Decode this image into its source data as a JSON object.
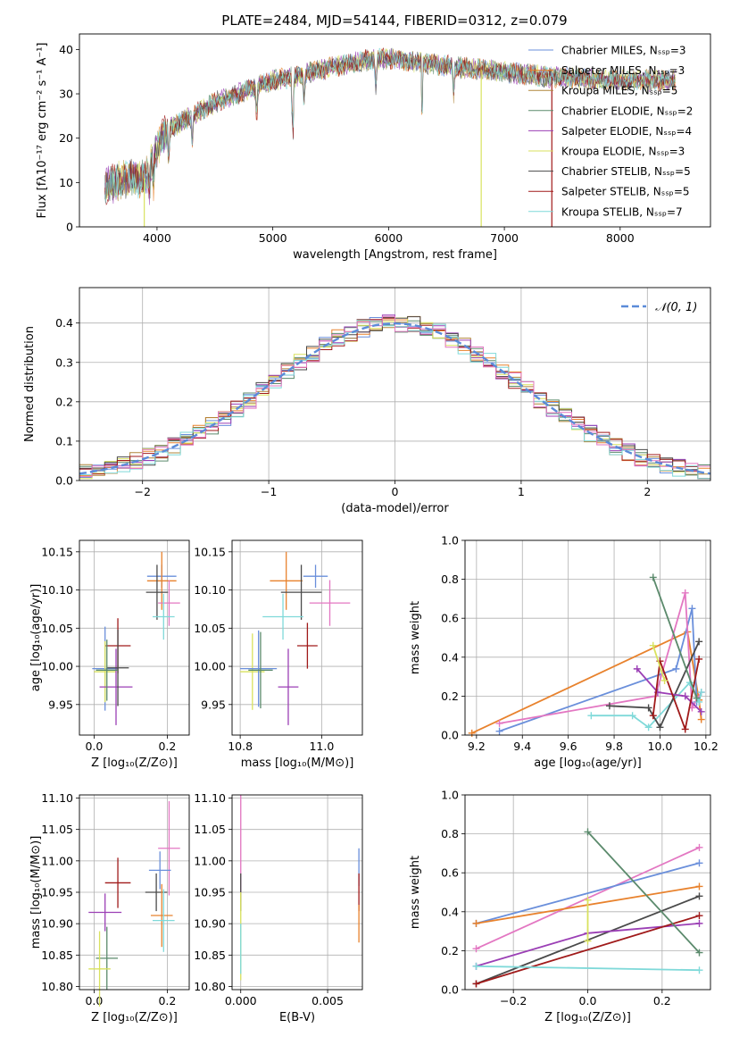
{
  "figure_title": "PLATE=2484, MJD=54144, FIBERID=0312, z=0.079",
  "series_colors": [
    "#6a8fdb",
    "#e8822d",
    "#b0853a",
    "#5b8a6c",
    "#9b3fb5",
    "#d9e25e",
    "#4a4a4a",
    "#a01a1a",
    "#7fd9d9",
    "#e377c2"
  ],
  "chart_data": [
    {
      "id": "spectrum",
      "type": "line",
      "title": "PLATE=2484, MJD=54144, FIBERID=0312, z=0.079",
      "xlabel": "wavelength [Angstrom, rest frame]",
      "ylabel": "Flux [fλ10⁻¹⁷ erg cm⁻² s⁻¹ A⁻¹]",
      "xlim": [
        3330,
        8780
      ],
      "ylim": [
        0,
        43.5
      ],
      "xticks": [
        4000,
        5000,
        6000,
        7000,
        8000
      ],
      "yticks": [
        0,
        10,
        20,
        30,
        40
      ],
      "grid": false,
      "legend_position": "top-right",
      "series": [
        {
          "name": "Chabrier MILES, Nₛₛₚ=3",
          "color": "#6a8fdb"
        },
        {
          "name": "Salpeter MILES, Nₛₛₚ=3",
          "color": "#e8822d"
        },
        {
          "name": "Kroupa MILES, Nₛₛₚ=5",
          "color": "#b0853a"
        },
        {
          "name": "Chabrier ELODIE, Nₛₛₚ=2",
          "color": "#5b8a6c"
        },
        {
          "name": "Salpeter ELODIE, Nₛₛₚ=4",
          "color": "#9b3fb5"
        },
        {
          "name": "Kroupa ELODIE, Nₛₛₚ=3",
          "color": "#d9e25e"
        },
        {
          "name": "Chabrier STELIB, Nₛₛₚ=5",
          "color": "#4a4a4a"
        },
        {
          "name": "Salpeter STELIB, Nₛₛₚ=5",
          "color": "#a01a1a"
        },
        {
          "name": "Kroupa STELIB, Nₛₛₚ=7",
          "color": "#7fd9d9"
        }
      ],
      "continuum": {
        "x": [
          3550,
          3700,
          3900,
          4000,
          4100,
          4300,
          4500,
          4800,
          5000,
          5200,
          5500,
          5800,
          6000,
          6300,
          6600,
          7000,
          7300,
          7600,
          8000,
          8300,
          8500
        ],
        "y": [
          9,
          11,
          11,
          18,
          22,
          25,
          28,
          31,
          33,
          34,
          36,
          37.5,
          38,
          37,
          36,
          35,
          34,
          33.5,
          33,
          33,
          33
        ]
      },
      "drops": [
        {
          "x": 3890,
          "color": "#d9e25e"
        },
        {
          "x": 6800,
          "color": "#d9e25e"
        },
        {
          "x": 7410,
          "color": "#a01a1a"
        }
      ]
    },
    {
      "id": "residuals",
      "type": "line",
      "xlabel": "(data-model)/error",
      "ylabel": "Normed distribution",
      "xlim": [
        -2.5,
        2.5
      ],
      "ylim": [
        0,
        0.49
      ],
      "xticks": [
        -2,
        -1,
        0,
        1,
        2
      ],
      "yticks": [
        0.0,
        0.1,
        0.2,
        0.3,
        0.4
      ],
      "grid": true,
      "legend_position": "top-right",
      "reference": {
        "name": "𝒩(0, 1)",
        "color": "#5b8bd8",
        "style": "dashed"
      },
      "step_hist": {
        "bin_width": 0.1,
        "series_count": 10
      }
    },
    {
      "id": "age-vs-Z",
      "type": "scatter",
      "xlabel": "Z [log₁₀(Z/Z⊙)]",
      "ylabel": "age  [log₁₀(age/yr)]",
      "xlim": [
        -0.04,
        0.26
      ],
      "ylim": [
        9.91,
        10.165
      ],
      "xticks": [
        0.0,
        0.2
      ],
      "yticks": [
        9.95,
        10.0,
        10.05,
        10.1,
        10.15
      ],
      "grid": true,
      "points": [
        {
          "x": 0.185,
          "y": 10.118,
          "xerr": 0.04,
          "yerr": 0.015,
          "color": "#6a8fdb"
        },
        {
          "x": 0.185,
          "y": 10.112,
          "xerr": 0.04,
          "yerr": 0.038,
          "color": "#e8822d"
        },
        {
          "x": 0.205,
          "y": 10.083,
          "xerr": 0.03,
          "yerr": 0.03,
          "color": "#e377c2"
        },
        {
          "x": 0.172,
          "y": 10.097,
          "xerr": 0.03,
          "yerr": 0.036,
          "color": "#4a4a4a"
        },
        {
          "x": 0.19,
          "y": 10.065,
          "xerr": 0.03,
          "yerr": 0.03,
          "color": "#7fd9d9"
        },
        {
          "x": 0.065,
          "y": 10.027,
          "xerr": 0.035,
          "yerr": 0.036,
          "color": "#a01a1a"
        },
        {
          "x": 0.03,
          "y": 9.997,
          "xerr": 0.035,
          "yerr": 0.055,
          "color": "#6a8fdb"
        },
        {
          "x": 0.03,
          "y": 9.993,
          "xerr": 0.03,
          "yerr": 0.04,
          "color": "#d9e25e"
        },
        {
          "x": 0.06,
          "y": 9.973,
          "xerr": 0.045,
          "yerr": 0.05,
          "color": "#9b3fb5"
        },
        {
          "x": 0.065,
          "y": 9.998,
          "xerr": 0.03,
          "yerr": 0.05,
          "color": "#4a4a4a"
        },
        {
          "x": 0.035,
          "y": 9.995,
          "xerr": 0.03,
          "yerr": 0.04,
          "color": "#5b8a6c"
        }
      ]
    },
    {
      "id": "age-vs-mass",
      "type": "scatter",
      "xlabel": "mass [log₁₀(M/M⊙)]",
      "ylabel": "",
      "xlim": [
        10.78,
        11.1
      ],
      "ylim": [
        9.91,
        10.165
      ],
      "xticks": [
        10.8,
        11.0
      ],
      "yticks": [
        9.95,
        10.0,
        10.05,
        10.1,
        10.15
      ],
      "grid": true,
      "points": [
        {
          "x": 10.985,
          "y": 10.118,
          "xerr": 0.03,
          "yerr": 0.015,
          "color": "#6a8fdb"
        },
        {
          "x": 10.913,
          "y": 10.112,
          "xerr": 0.04,
          "yerr": 0.038,
          "color": "#e8822d"
        },
        {
          "x": 11.02,
          "y": 10.083,
          "xerr": 0.05,
          "yerr": 0.03,
          "color": "#e377c2"
        },
        {
          "x": 10.95,
          "y": 10.097,
          "xerr": 0.05,
          "yerr": 0.036,
          "color": "#4a4a4a"
        },
        {
          "x": 10.905,
          "y": 10.065,
          "xerr": 0.05,
          "yerr": 0.03,
          "color": "#7fd9d9"
        },
        {
          "x": 10.965,
          "y": 10.027,
          "xerr": 0.025,
          "yerr": 0.03,
          "color": "#a01a1a"
        },
        {
          "x": 10.83,
          "y": 9.993,
          "xerr": 0.03,
          "yerr": 0.05,
          "color": "#d9e25e"
        },
        {
          "x": 10.845,
          "y": 9.997,
          "xerr": 0.045,
          "yerr": 0.05,
          "color": "#6a8fdb"
        },
        {
          "x": 10.918,
          "y": 9.973,
          "xerr": 0.025,
          "yerr": 0.05,
          "color": "#9b3fb5"
        },
        {
          "x": 10.85,
          "y": 9.995,
          "xerr": 0.03,
          "yerr": 0.05,
          "color": "#5b8a6c"
        }
      ]
    },
    {
      "id": "weight-vs-age",
      "type": "line",
      "xlabel": "age  [log₁₀(age/yr)]",
      "ylabel": "mass weight",
      "xlim": [
        9.15,
        10.22
      ],
      "ylim": [
        0,
        1.0
      ],
      "xticks": [
        9.2,
        9.4,
        9.6,
        9.8,
        10.0,
        10.2
      ],
      "yticks": [
        0.0,
        0.2,
        0.4,
        0.6,
        0.8,
        1.0
      ],
      "grid": true,
      "series": [
        {
          "color": "#e8822d",
          "x": [
            9.18,
            10.12,
            10.17,
            10.18
          ],
          "y": [
            0.01,
            0.53,
            0.18,
            0.08
          ]
        },
        {
          "color": "#6a8fdb",
          "x": [
            9.3,
            10.07,
            10.14,
            10.16
          ],
          "y": [
            0.02,
            0.34,
            0.65,
            0.17
          ]
        },
        {
          "color": "#e377c2",
          "x": [
            9.3,
            9.98,
            10.11,
            10.14,
            10.18
          ],
          "y": [
            0.06,
            0.2,
            0.73,
            0.14,
            0.22
          ]
        },
        {
          "color": "#7fd9d9",
          "x": [
            9.7,
            9.88,
            9.95,
            10.13,
            10.17,
            10.18
          ],
          "y": [
            0.1,
            0.1,
            0.04,
            0.27,
            0.17,
            0.22
          ]
        },
        {
          "color": "#4a4a4a",
          "x": [
            9.78,
            9.95,
            10.0,
            10.17
          ],
          "y": [
            0.15,
            0.14,
            0.04,
            0.48
          ]
        },
        {
          "color": "#9b3fb5",
          "x": [
            9.9,
            9.99,
            10.11,
            10.18
          ],
          "y": [
            0.34,
            0.22,
            0.2,
            0.12
          ]
        },
        {
          "color": "#a01a1a",
          "x": [
            9.97,
            10.0,
            10.11,
            10.17
          ],
          "y": [
            0.1,
            0.38,
            0.03,
            0.39
          ]
        },
        {
          "color": "#d9e25e",
          "x": [
            9.97,
            10.02
          ],
          "y": [
            0.46,
            0.28
          ]
        },
        {
          "color": "#5b8a6c",
          "x": [
            9.97,
            10.16
          ],
          "y": [
            0.81,
            0.19
          ]
        }
      ]
    },
    {
      "id": "mass-vs-Z",
      "type": "scatter",
      "xlabel": "Z [log₁₀(Z/Z⊙)]",
      "ylabel": "mass [log₁₀(M/M⊙)]",
      "xlim": [
        -0.04,
        0.26
      ],
      "ylim": [
        10.795,
        11.105
      ],
      "xticks": [
        0.0,
        0.2
      ],
      "yticks": [
        10.8,
        10.85,
        10.9,
        10.95,
        11.0,
        11.05,
        11.1
      ],
      "grid": true,
      "points": [
        {
          "x": 0.205,
          "y": 11.02,
          "xerr": 0.03,
          "yerr": 0.075,
          "color": "#e377c2"
        },
        {
          "x": 0.18,
          "y": 10.985,
          "xerr": 0.03,
          "yerr": 0.03,
          "color": "#6a8fdb"
        },
        {
          "x": 0.065,
          "y": 10.965,
          "xerr": 0.035,
          "yerr": 0.04,
          "color": "#a01a1a"
        },
        {
          "x": 0.17,
          "y": 10.95,
          "xerr": 0.03,
          "yerr": 0.03,
          "color": "#4a4a4a"
        },
        {
          "x": 0.03,
          "y": 10.918,
          "xerr": 0.045,
          "yerr": 0.03,
          "color": "#9b3fb5"
        },
        {
          "x": 0.185,
          "y": 10.913,
          "xerr": 0.03,
          "yerr": 0.05,
          "color": "#e8822d"
        },
        {
          "x": 0.19,
          "y": 10.905,
          "xerr": 0.03,
          "yerr": 0.05,
          "color": "#7fd9d9"
        },
        {
          "x": 0.035,
          "y": 10.845,
          "xerr": 0.03,
          "yerr": 0.05,
          "color": "#5b8a6c"
        },
        {
          "x": 0.015,
          "y": 10.828,
          "xerr": 0.03,
          "yerr": 0.06,
          "color": "#d9e25e"
        }
      ]
    },
    {
      "id": "mass-vs-EBV",
      "type": "scatter",
      "xlabel": "E(B-V)",
      "ylabel": "",
      "xlim": [
        -0.0005,
        0.007
      ],
      "ylim": [
        10.795,
        11.105
      ],
      "xticks": [
        0.0,
        0.005
      ],
      "yticks": [
        10.8,
        10.85,
        10.9,
        10.95,
        11.0,
        11.05,
        11.1
      ],
      "grid": true,
      "points": [
        {
          "x": 0.0,
          "y": 11.02,
          "xerr": 0,
          "yerr": 0.085,
          "color": "#e377c2"
        },
        {
          "x": 0.0,
          "y": 10.95,
          "xerr": 0,
          "yerr": 0.03,
          "color": "#4a4a4a"
        },
        {
          "x": 0.0,
          "y": 10.88,
          "xerr": 0,
          "yerr": 0.07,
          "color": "#d9e25e"
        },
        {
          "x": 0.0,
          "y": 10.86,
          "xerr": 0,
          "yerr": 0.04,
          "color": "#7fd9d9"
        },
        {
          "x": 0.0068,
          "y": 10.99,
          "xerr": 0,
          "yerr": 0.03,
          "color": "#6a8fdb"
        },
        {
          "x": 0.0068,
          "y": 10.95,
          "xerr": 0,
          "yerr": 0.03,
          "color": "#a01a1a"
        },
        {
          "x": 0.0068,
          "y": 10.9,
          "xerr": 0,
          "yerr": 0.03,
          "color": "#e8822d"
        }
      ]
    },
    {
      "id": "weight-vs-Z",
      "type": "line",
      "xlabel": "Z [log₁₀(Z/Z⊙)]",
      "ylabel": "mass weight",
      "xlim": [
        -0.33,
        0.33
      ],
      "ylim": [
        0,
        1.0
      ],
      "xticks": [
        -0.2,
        0.0,
        0.2
      ],
      "yticks": [
        0.0,
        0.2,
        0.4,
        0.6,
        0.8,
        1.0
      ],
      "grid": true,
      "series": [
        {
          "color": "#e377c2",
          "x": [
            -0.3,
            0.3
          ],
          "y": [
            0.21,
            0.73
          ]
        },
        {
          "color": "#6a8fdb",
          "x": [
            -0.3,
            0.3
          ],
          "y": [
            0.34,
            0.65
          ]
        },
        {
          "color": "#e8822d",
          "x": [
            -0.3,
            0.3
          ],
          "y": [
            0.34,
            0.53
          ]
        },
        {
          "color": "#4a4a4a",
          "x": [
            -0.3,
            0.3
          ],
          "y": [
            0.03,
            0.48
          ]
        },
        {
          "color": "#9b3fb5",
          "x": [
            -0.3,
            0.0,
            0.3
          ],
          "y": [
            0.12,
            0.29,
            0.34
          ]
        },
        {
          "color": "#a01a1a",
          "x": [
            -0.3,
            0.3
          ],
          "y": [
            0.03,
            0.38
          ]
        },
        {
          "color": "#7fd9d9",
          "x": [
            -0.3,
            0.3
          ],
          "y": [
            0.12,
            0.1
          ]
        },
        {
          "color": "#5b8a6c",
          "x": [
            0.0,
            0.3
          ],
          "y": [
            0.81,
            0.19
          ]
        },
        {
          "color": "#d9e25e",
          "x": [
            0.0,
            0.0
          ],
          "y": [
            0.46,
            0.25
          ]
        }
      ]
    }
  ]
}
